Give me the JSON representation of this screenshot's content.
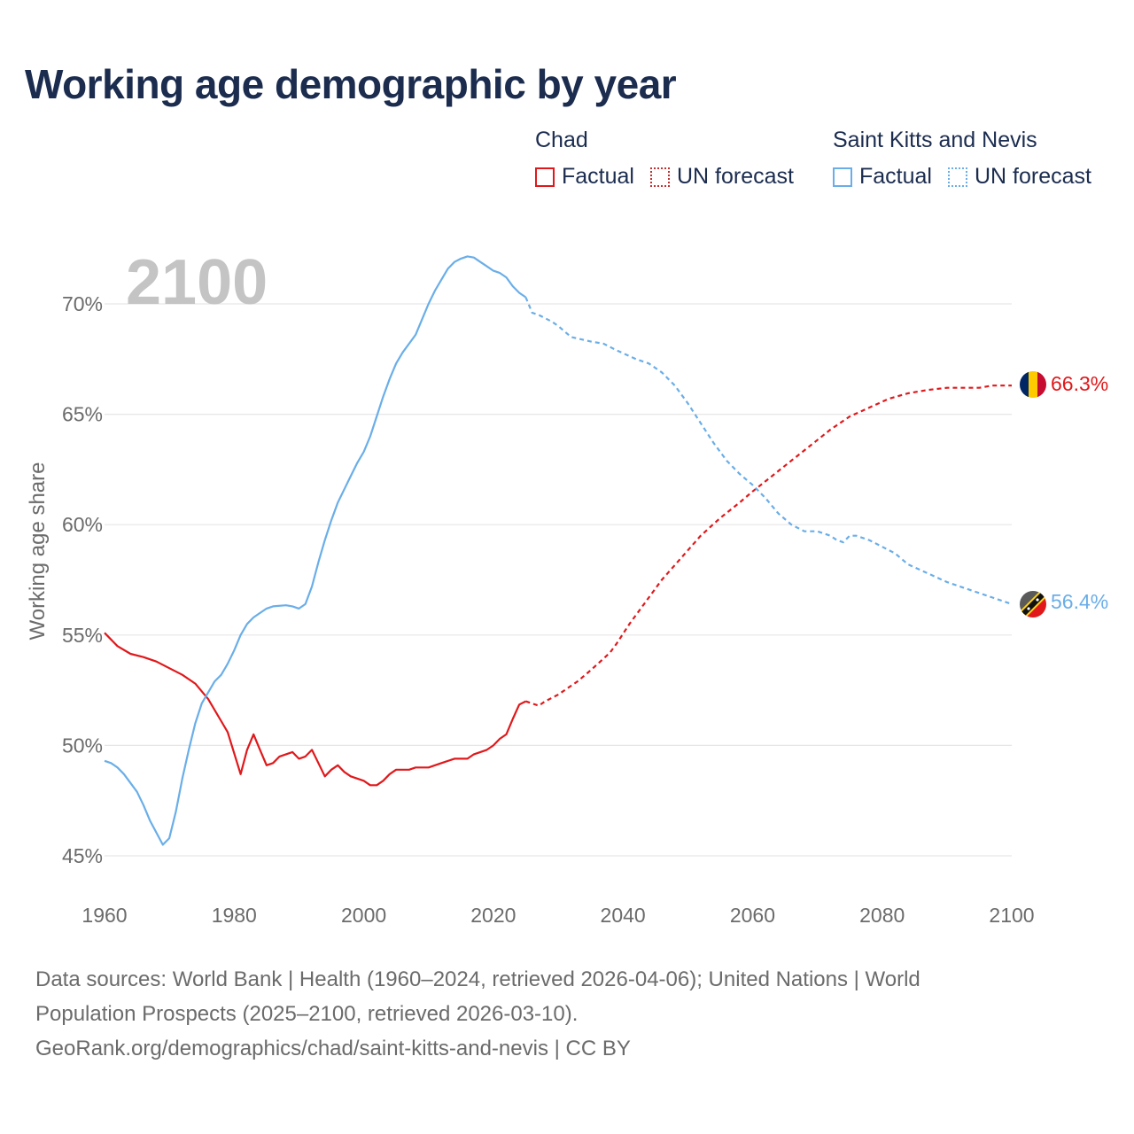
{
  "title": "Working age demographic by year",
  "legend": {
    "groups": [
      {
        "name": "Chad",
        "factual_label": "Factual",
        "forecast_label": "UN forecast"
      },
      {
        "name": "Saint Kitts and Nevis",
        "factual_label": "Factual",
        "forecast_label": "UN forecast"
      }
    ]
  },
  "colors": {
    "chad": "#e0181b",
    "skn": "#6aaee8",
    "grid": "#e6e6e6",
    "axis_text": "#6b6b6b",
    "year_label": "#c4c4c4",
    "title": "#1b2c4f"
  },
  "chart_data": {
    "type": "line",
    "title": "Working age demographic by year",
    "year_label": "2100",
    "xlabel": "",
    "ylabel": "Working age share",
    "xlim": [
      1960,
      2100
    ],
    "ylim": [
      45,
      72
    ],
    "x_ticks": [
      1960,
      1980,
      2000,
      2020,
      2040,
      2060,
      2080,
      2100
    ],
    "y_ticks": [
      45,
      50,
      55,
      60,
      65,
      70
    ],
    "y_tick_labels": [
      "45%",
      "50%",
      "55%",
      "60%",
      "65%",
      "70%"
    ],
    "grid": true,
    "forecast_start": 2025,
    "series": [
      {
        "name": "Chad",
        "color": "#e0181b",
        "end_label": "66.3%",
        "points": [
          [
            1960,
            55.1
          ],
          [
            1961,
            54.8
          ],
          [
            1962,
            54.5
          ],
          [
            1964,
            54.15
          ],
          [
            1966,
            54.0
          ],
          [
            1968,
            53.8
          ],
          [
            1970,
            53.5
          ],
          [
            1972,
            53.2
          ],
          [
            1974,
            52.8
          ],
          [
            1976,
            52.1
          ],
          [
            1978,
            51.1
          ],
          [
            1979,
            50.6
          ],
          [
            1981,
            48.7
          ],
          [
            1982,
            49.8
          ],
          [
            1983,
            50.5
          ],
          [
            1984,
            49.8
          ],
          [
            1985,
            49.1
          ],
          [
            1986,
            49.2
          ],
          [
            1987,
            49.5
          ],
          [
            1988,
            49.6
          ],
          [
            1989,
            49.7
          ],
          [
            1990,
            49.4
          ],
          [
            1991,
            49.5
          ],
          [
            1992,
            49.8
          ],
          [
            1993,
            49.2
          ],
          [
            1994,
            48.6
          ],
          [
            1995,
            48.9
          ],
          [
            1996,
            49.1
          ],
          [
            1997,
            48.8
          ],
          [
            1998,
            48.6
          ],
          [
            2000,
            48.4
          ],
          [
            2001,
            48.2
          ],
          [
            2002,
            48.2
          ],
          [
            2003,
            48.4
          ],
          [
            2004,
            48.7
          ],
          [
            2005,
            48.9
          ],
          [
            2006,
            48.9
          ],
          [
            2007,
            48.9
          ],
          [
            2008,
            49.0
          ],
          [
            2010,
            49.0
          ],
          [
            2012,
            49.2
          ],
          [
            2014,
            49.4
          ],
          [
            2016,
            49.4
          ],
          [
            2017,
            49.6
          ],
          [
            2019,
            49.8
          ],
          [
            2020,
            50.0
          ],
          [
            2021,
            50.3
          ],
          [
            2022,
            50.5
          ],
          [
            2023,
            51.2
          ],
          [
            2024,
            51.85
          ],
          [
            2025,
            52.0
          ],
          [
            2026,
            51.9
          ],
          [
            2027,
            51.8
          ],
          [
            2028,
            52.0
          ],
          [
            2030,
            52.3
          ],
          [
            2033,
            52.9
          ],
          [
            2035,
            53.4
          ],
          [
            2038,
            54.2
          ],
          [
            2039,
            54.6
          ],
          [
            2041,
            55.5
          ],
          [
            2043,
            56.3
          ],
          [
            2046,
            57.5
          ],
          [
            2049,
            58.5
          ],
          [
            2052,
            59.5
          ],
          [
            2055,
            60.3
          ],
          [
            2058,
            61.0
          ],
          [
            2060,
            61.5
          ],
          [
            2063,
            62.2
          ],
          [
            2066,
            62.9
          ],
          [
            2069,
            63.6
          ],
          [
            2072,
            64.3
          ],
          [
            2075,
            64.9
          ],
          [
            2078,
            65.3
          ],
          [
            2081,
            65.7
          ],
          [
            2084,
            65.95
          ],
          [
            2087,
            66.1
          ],
          [
            2090,
            66.2
          ],
          [
            2095,
            66.2
          ],
          [
            2097,
            66.3
          ],
          [
            2100,
            66.3
          ]
        ]
      },
      {
        "name": "Saint Kitts and Nevis",
        "color": "#6aaee8",
        "end_label": "56.4%",
        "points": [
          [
            1960,
            49.3
          ],
          [
            1961,
            49.2
          ],
          [
            1962,
            49.0
          ],
          [
            1963,
            48.7
          ],
          [
            1964,
            48.3
          ],
          [
            1965,
            47.9
          ],
          [
            1966,
            47.3
          ],
          [
            1967,
            46.6
          ],
          [
            1969,
            45.5
          ],
          [
            1970,
            45.8
          ],
          [
            1971,
            47.0
          ],
          [
            1972,
            48.5
          ],
          [
            1973,
            49.8
          ],
          [
            1974,
            51.0
          ],
          [
            1975,
            51.9
          ],
          [
            1976,
            52.4
          ],
          [
            1977,
            52.9
          ],
          [
            1978,
            53.2
          ],
          [
            1979,
            53.7
          ],
          [
            1980,
            54.3
          ],
          [
            1981,
            55.0
          ],
          [
            1982,
            55.5
          ],
          [
            1983,
            55.8
          ],
          [
            1984,
            56.0
          ],
          [
            1985,
            56.2
          ],
          [
            1986,
            56.3
          ],
          [
            1988,
            56.35
          ],
          [
            1989,
            56.3
          ],
          [
            1990,
            56.2
          ],
          [
            1991,
            56.4
          ],
          [
            1992,
            57.2
          ],
          [
            1993,
            58.3
          ],
          [
            1994,
            59.3
          ],
          [
            1995,
            60.2
          ],
          [
            1996,
            61.0
          ],
          [
            1997,
            61.6
          ],
          [
            1998,
            62.2
          ],
          [
            1999,
            62.8
          ],
          [
            2000,
            63.3
          ],
          [
            2001,
            64.0
          ],
          [
            2002,
            64.9
          ],
          [
            2003,
            65.8
          ],
          [
            2004,
            66.6
          ],
          [
            2005,
            67.3
          ],
          [
            2006,
            67.8
          ],
          [
            2007,
            68.2
          ],
          [
            2008,
            68.6
          ],
          [
            2009,
            69.3
          ],
          [
            2010,
            70.0
          ],
          [
            2011,
            70.6
          ],
          [
            2012,
            71.1
          ],
          [
            2013,
            71.6
          ],
          [
            2014,
            71.9
          ],
          [
            2015,
            72.05
          ],
          [
            2016,
            72.15
          ],
          [
            2017,
            72.1
          ],
          [
            2018,
            71.9
          ],
          [
            2019,
            71.7
          ],
          [
            2020,
            71.5
          ],
          [
            2021,
            71.4
          ],
          [
            2022,
            71.2
          ],
          [
            2023,
            70.8
          ],
          [
            2024,
            70.5
          ],
          [
            2025,
            70.3
          ],
          [
            2026,
            69.6
          ],
          [
            2027,
            69.5
          ],
          [
            2029,
            69.2
          ],
          [
            2030,
            69.0
          ],
          [
            2032,
            68.5
          ],
          [
            2035,
            68.3
          ],
          [
            2037,
            68.2
          ],
          [
            2039,
            67.9
          ],
          [
            2042,
            67.5
          ],
          [
            2044,
            67.3
          ],
          [
            2046,
            66.9
          ],
          [
            2048,
            66.3
          ],
          [
            2050,
            65.5
          ],
          [
            2052,
            64.6
          ],
          [
            2054,
            63.7
          ],
          [
            2056,
            62.9
          ],
          [
            2058,
            62.3
          ],
          [
            2060,
            61.8
          ],
          [
            2062,
            61.2
          ],
          [
            2064,
            60.5
          ],
          [
            2066,
            60.0
          ],
          [
            2068,
            59.7
          ],
          [
            2070,
            59.7
          ],
          [
            2072,
            59.5
          ],
          [
            2073,
            59.3
          ],
          [
            2074,
            59.2
          ],
          [
            2075,
            59.5
          ],
          [
            2076,
            59.5
          ],
          [
            2078,
            59.3
          ],
          [
            2080,
            59.0
          ],
          [
            2082,
            58.7
          ],
          [
            2084,
            58.2
          ],
          [
            2087,
            57.8
          ],
          [
            2090,
            57.4
          ],
          [
            2093,
            57.1
          ],
          [
            2096,
            56.8
          ],
          [
            2098,
            56.6
          ],
          [
            2100,
            56.4
          ]
        ]
      }
    ]
  },
  "footer": {
    "line1": "Data sources: World Bank | Health (1960–2024, retrieved 2026-04-06); United Nations | World",
    "line2": "Population Prospects (2025–2100, retrieved 2026-03-10).",
    "line3": "GeoRank.org/demographics/chad/saint-kitts-and-nevis | CC BY"
  }
}
